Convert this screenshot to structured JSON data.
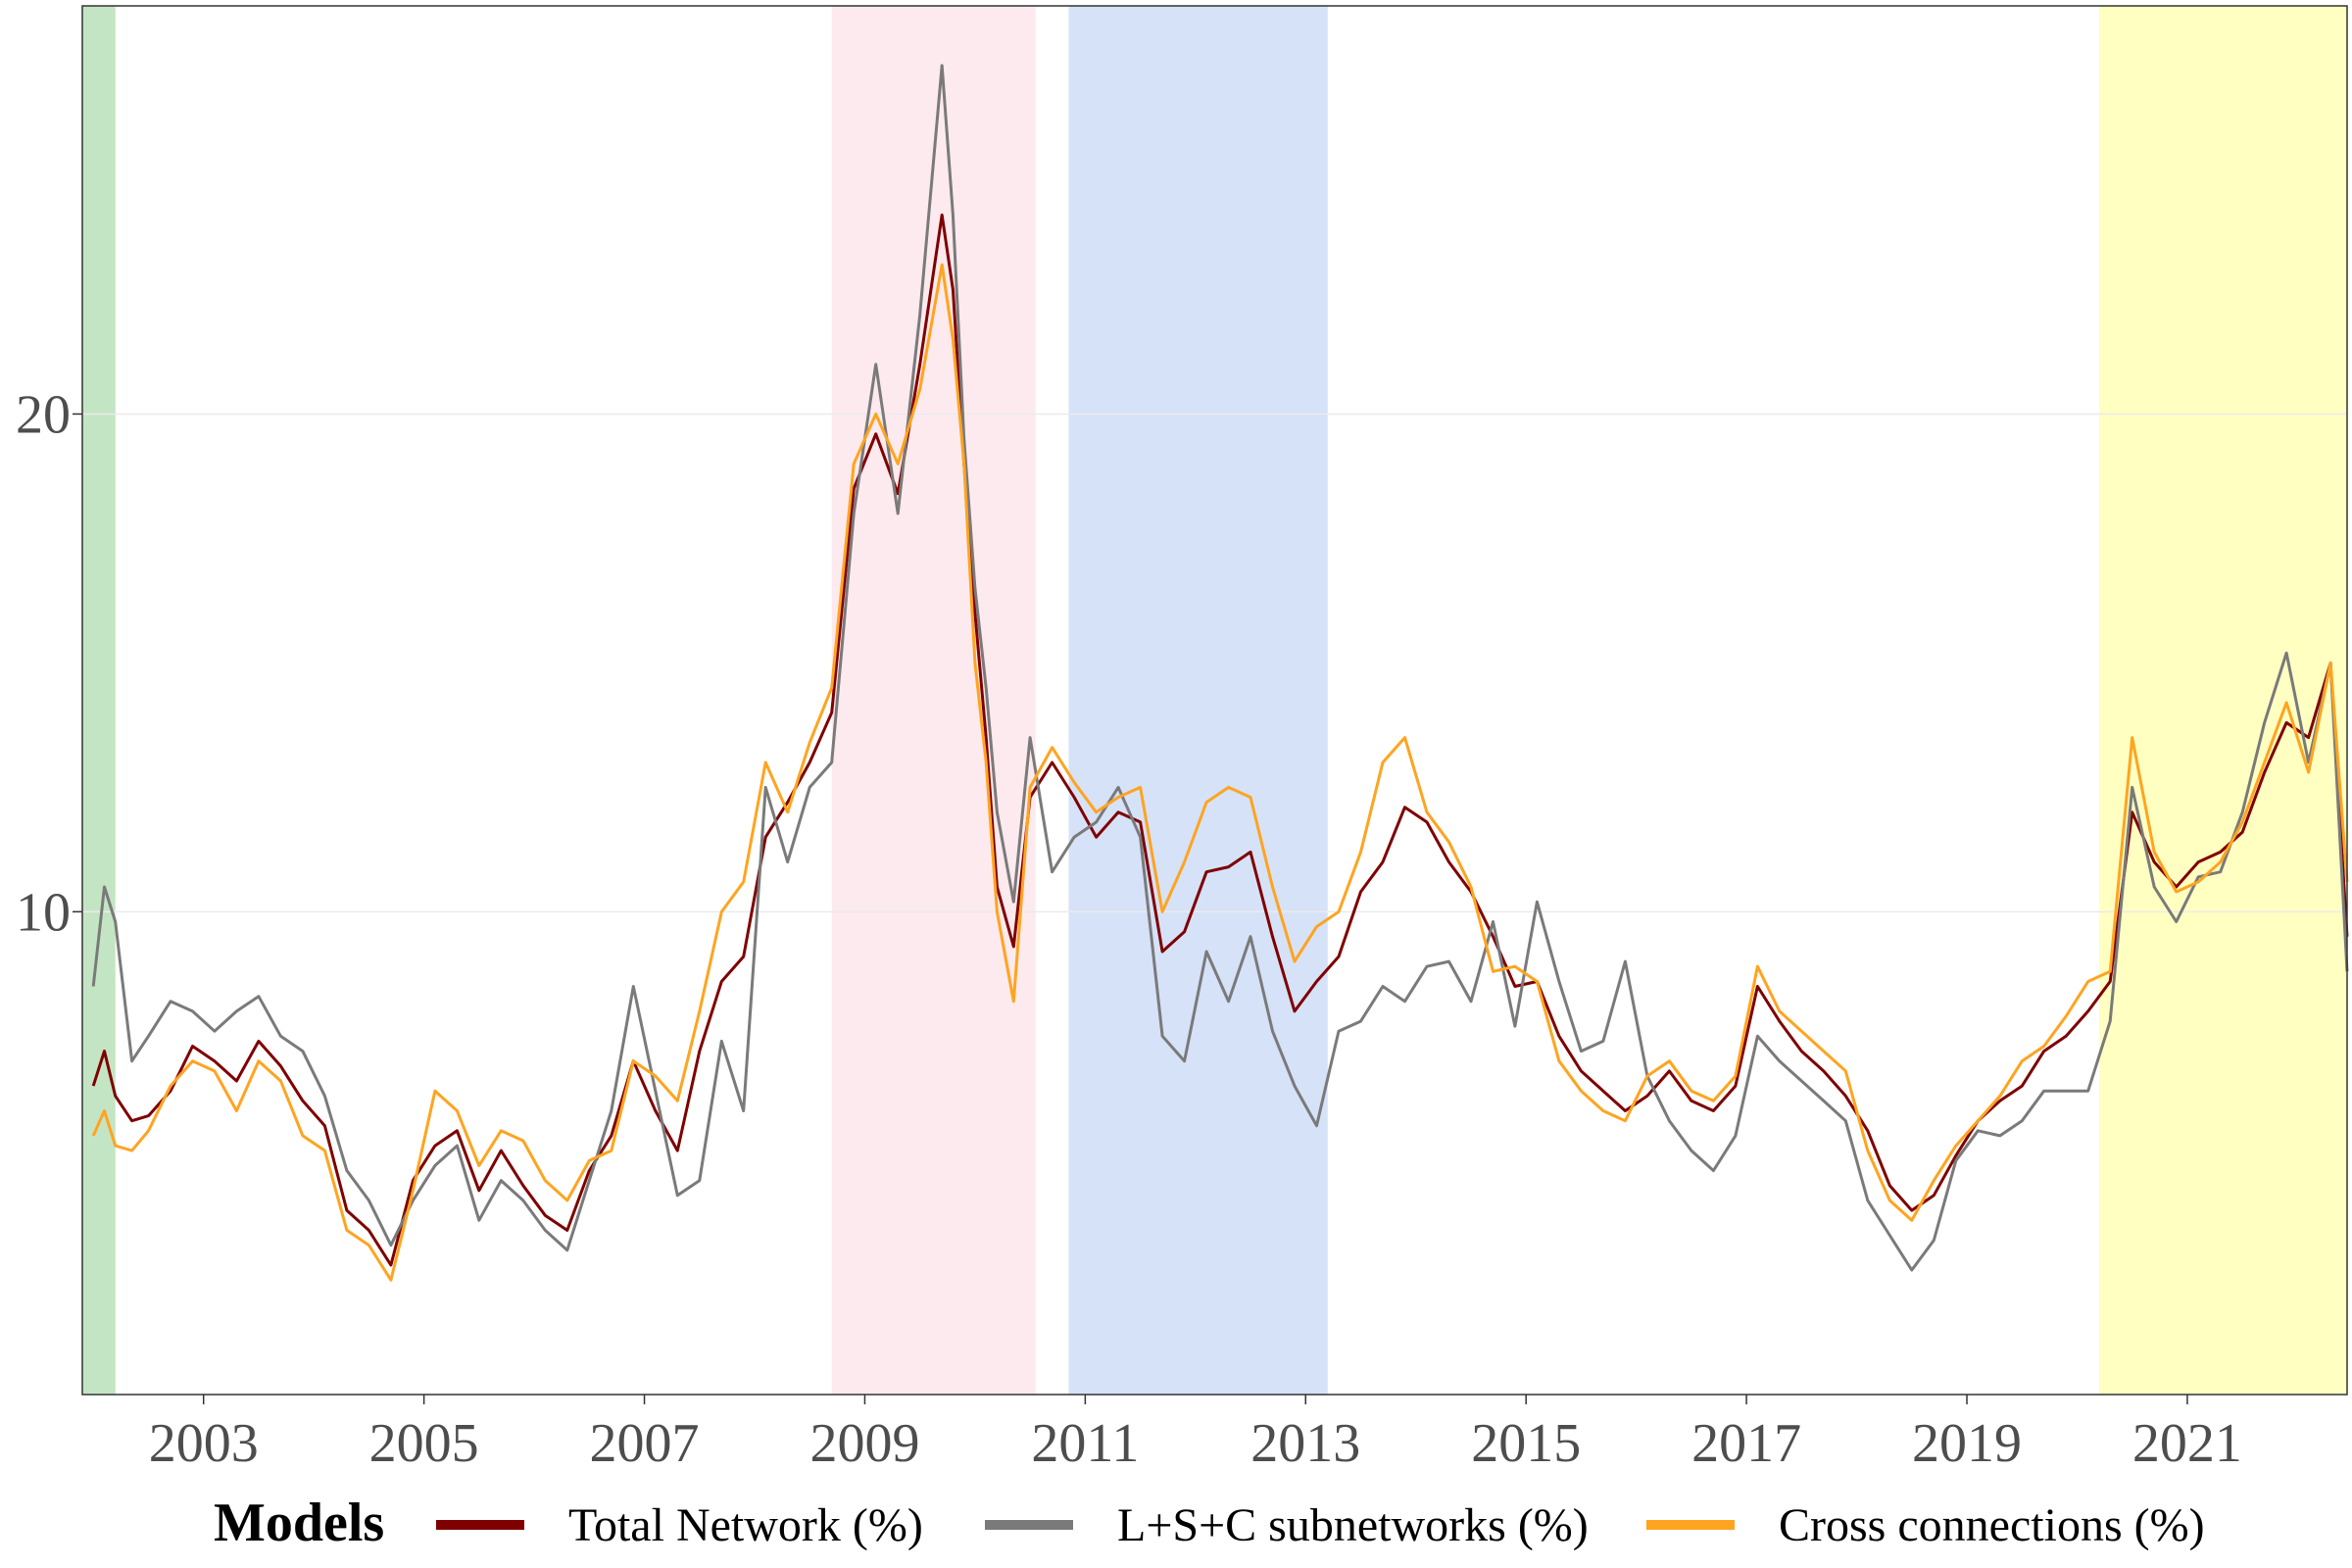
{
  "chart_data": {
    "type": "line",
    "title": "",
    "xlabel": "",
    "ylabel": "",
    "xlim": [
      2001.9,
      2022.45
    ],
    "ylim": [
      0.3,
      28.2
    ],
    "x_ticks": [
      2003,
      2005,
      2007,
      2009,
      2011,
      2013,
      2015,
      2017,
      2019,
      2021
    ],
    "x_tick_labels": [
      "2003",
      "2005",
      "2007",
      "2009",
      "2011",
      "2013",
      "2015",
      "2017",
      "2019",
      "2021"
    ],
    "y_ticks": [
      10,
      20
    ],
    "y_tick_labels": [
      "10",
      "20"
    ],
    "grid": true,
    "legend_position": "bottom",
    "legend_title": "Models",
    "shaded_periods": [
      {
        "start": 2001.9,
        "end": 2002.2,
        "color": "#c4e5c4"
      },
      {
        "start": 2008.7,
        "end": 2010.55,
        "color": "#fdeaee"
      },
      {
        "start": 2010.85,
        "end": 2013.2,
        "color": "#d6e2f8"
      },
      {
        "start": 2020.2,
        "end": 2022.45,
        "color": "#ffffc2"
      }
    ],
    "series": [
      {
        "name": "Total Network (%)",
        "color": "#7f0000",
        "x": [
          2002.0,
          2002.1,
          2002.2,
          2002.35,
          2002.5,
          2002.7,
          2002.9,
          2003.1,
          2003.3,
          2003.5,
          2003.7,
          2003.9,
          2004.1,
          2004.3,
          2004.5,
          2004.7,
          2004.9,
          2005.1,
          2005.3,
          2005.5,
          2005.7,
          2005.9,
          2006.1,
          2006.3,
          2006.5,
          2006.7,
          2006.9,
          2007.1,
          2007.3,
          2007.5,
          2007.7,
          2007.9,
          2008.1,
          2008.3,
          2008.5,
          2008.7,
          2008.9,
          2009.1,
          2009.3,
          2009.5,
          2009.7,
          2009.8,
          2009.9,
          2010.0,
          2010.1,
          2010.2,
          2010.35,
          2010.5,
          2010.7,
          2010.9,
          2011.1,
          2011.3,
          2011.5,
          2011.7,
          2011.9,
          2012.1,
          2012.3,
          2012.5,
          2012.7,
          2012.9,
          2013.1,
          2013.3,
          2013.5,
          2013.7,
          2013.9,
          2014.1,
          2014.3,
          2014.5,
          2014.7,
          2014.9,
          2015.1,
          2015.3,
          2015.5,
          2015.7,
          2015.9,
          2016.1,
          2016.3,
          2016.5,
          2016.7,
          2016.9,
          2017.1,
          2017.3,
          2017.5,
          2017.7,
          2017.9,
          2018.1,
          2018.3,
          2018.5,
          2018.7,
          2018.9,
          2019.1,
          2019.3,
          2019.5,
          2019.7,
          2019.9,
          2020.1,
          2020.3,
          2020.5,
          2020.7,
          2020.9,
          2021.1,
          2021.3,
          2021.5,
          2021.7,
          2021.9,
          2022.1,
          2022.3,
          2022.45
        ],
        "values": [
          6.5,
          7.2,
          6.3,
          5.8,
          5.9,
          6.4,
          7.3,
          7.0,
          6.6,
          7.4,
          6.9,
          6.2,
          5.7,
          4.0,
          3.6,
          2.9,
          4.6,
          5.3,
          5.6,
          4.4,
          5.2,
          4.5,
          3.9,
          3.6,
          4.8,
          5.5,
          7.0,
          6.0,
          5.2,
          7.2,
          8.6,
          9.1,
          11.5,
          12.2,
          13.0,
          14.0,
          18.5,
          19.6,
          18.4,
          21.0,
          24.0,
          22.5,
          19.0,
          16.0,
          13.5,
          10.5,
          9.3,
          12.3,
          13.0,
          12.3,
          11.5,
          12.0,
          11.8,
          9.2,
          9.6,
          10.8,
          10.9,
          11.2,
          9.5,
          8.0,
          8.6,
          9.1,
          10.4,
          11.0,
          12.1,
          11.8,
          11.0,
          10.4,
          9.5,
          8.5,
          8.6,
          7.5,
          6.8,
          6.4,
          6.0,
          6.3,
          6.8,
          6.2,
          6.0,
          6.5,
          8.5,
          7.8,
          7.2,
          6.8,
          6.3,
          5.6,
          4.5,
          4.0,
          4.3,
          5.1,
          5.8,
          6.2,
          6.5,
          7.2,
          7.5,
          8.0,
          8.6,
          12.0,
          11.0,
          10.5,
          11.0,
          11.2,
          11.6,
          12.8,
          13.8,
          13.5,
          15.0,
          9.5
        ]
      },
      {
        "name": "L+S+C subnetworks (%)",
        "color": "#7a7a7a",
        "x": [
          2002.0,
          2002.1,
          2002.2,
          2002.35,
          2002.5,
          2002.7,
          2002.9,
          2003.1,
          2003.3,
          2003.5,
          2003.7,
          2003.9,
          2004.1,
          2004.3,
          2004.5,
          2004.7,
          2004.9,
          2005.1,
          2005.3,
          2005.5,
          2005.7,
          2005.9,
          2006.1,
          2006.3,
          2006.5,
          2006.7,
          2006.9,
          2007.1,
          2007.3,
          2007.5,
          2007.7,
          2007.9,
          2008.1,
          2008.3,
          2008.5,
          2008.7,
          2008.9,
          2009.1,
          2009.3,
          2009.5,
          2009.7,
          2009.8,
          2009.9,
          2010.0,
          2010.1,
          2010.2,
          2010.35,
          2010.5,
          2010.7,
          2010.9,
          2011.1,
          2011.3,
          2011.5,
          2011.7,
          2011.9,
          2012.1,
          2012.3,
          2012.5,
          2012.7,
          2012.9,
          2013.1,
          2013.3,
          2013.5,
          2013.7,
          2013.9,
          2014.1,
          2014.3,
          2014.5,
          2014.7,
          2014.9,
          2015.1,
          2015.3,
          2015.5,
          2015.7,
          2015.9,
          2016.1,
          2016.3,
          2016.5,
          2016.7,
          2016.9,
          2017.1,
          2017.3,
          2017.5,
          2017.7,
          2017.9,
          2018.1,
          2018.3,
          2018.5,
          2018.7,
          2018.9,
          2019.1,
          2019.3,
          2019.5,
          2019.7,
          2019.9,
          2020.1,
          2020.3,
          2020.5,
          2020.7,
          2020.9,
          2021.1,
          2021.3,
          2021.5,
          2021.7,
          2021.9,
          2022.1,
          2022.3,
          2022.45
        ],
        "values": [
          8.5,
          10.5,
          9.8,
          7.0,
          7.5,
          8.2,
          8.0,
          7.6,
          8.0,
          8.3,
          7.5,
          7.2,
          6.3,
          4.8,
          4.2,
          3.3,
          4.2,
          4.9,
          5.3,
          3.8,
          4.6,
          4.2,
          3.6,
          3.2,
          4.6,
          6.0,
          8.5,
          6.4,
          4.3,
          4.6,
          7.4,
          6.0,
          12.5,
          11.0,
          12.5,
          13.0,
          18.0,
          21.0,
          18.0,
          22.0,
          27.0,
          24.0,
          19.5,
          16.5,
          14.5,
          12.0,
          10.2,
          13.5,
          10.8,
          11.5,
          11.8,
          12.5,
          11.5,
          7.5,
          7.0,
          9.2,
          8.2,
          9.5,
          7.6,
          6.5,
          5.7,
          7.6,
          7.8,
          8.5,
          8.2,
          8.9,
          9.0,
          8.2,
          9.8,
          7.7,
          10.2,
          8.6,
          7.2,
          7.4,
          9.0,
          6.7,
          5.8,
          5.2,
          4.8,
          5.5,
          7.5,
          7.0,
          6.6,
          6.2,
          5.8,
          4.2,
          3.5,
          2.8,
          3.4,
          5.0,
          5.6,
          5.5,
          5.8,
          6.4,
          6.4,
          6.4,
          7.8,
          12.5,
          10.5,
          9.8,
          10.7,
          10.8,
          12.0,
          13.8,
          15.2,
          13.0,
          15.0,
          8.8
        ]
      },
      {
        "name": "Cross connections (%)",
        "color": "#ffa420",
        "x": [
          2002.0,
          2002.1,
          2002.2,
          2002.35,
          2002.5,
          2002.7,
          2002.9,
          2003.1,
          2003.3,
          2003.5,
          2003.7,
          2003.9,
          2004.1,
          2004.3,
          2004.5,
          2004.7,
          2004.9,
          2005.1,
          2005.3,
          2005.5,
          2005.7,
          2005.9,
          2006.1,
          2006.3,
          2006.5,
          2006.7,
          2006.9,
          2007.1,
          2007.3,
          2007.5,
          2007.7,
          2007.9,
          2008.1,
          2008.3,
          2008.5,
          2008.7,
          2008.9,
          2009.1,
          2009.3,
          2009.5,
          2009.7,
          2009.8,
          2009.9,
          2010.0,
          2010.1,
          2010.2,
          2010.35,
          2010.5,
          2010.7,
          2010.9,
          2011.1,
          2011.3,
          2011.5,
          2011.7,
          2011.9,
          2012.1,
          2012.3,
          2012.5,
          2012.7,
          2012.9,
          2013.1,
          2013.3,
          2013.5,
          2013.7,
          2013.9,
          2014.1,
          2014.3,
          2014.5,
          2014.7,
          2014.9,
          2015.1,
          2015.3,
          2015.5,
          2015.7,
          2015.9,
          2016.1,
          2016.3,
          2016.5,
          2016.7,
          2016.9,
          2017.1,
          2017.3,
          2017.5,
          2017.7,
          2017.9,
          2018.1,
          2018.3,
          2018.5,
          2018.7,
          2018.9,
          2019.1,
          2019.3,
          2019.5,
          2019.7,
          2019.9,
          2020.1,
          2020.3,
          2020.5,
          2020.7,
          2020.9,
          2021.1,
          2021.3,
          2021.5,
          2021.7,
          2021.9,
          2022.1,
          2022.3,
          2022.45
        ],
        "values": [
          5.5,
          6.0,
          5.3,
          5.2,
          5.6,
          6.5,
          7.0,
          6.8,
          6.0,
          7.0,
          6.6,
          5.5,
          5.2,
          3.6,
          3.3,
          2.6,
          4.4,
          6.4,
          6.0,
          4.9,
          5.6,
          5.4,
          4.6,
          4.2,
          5.0,
          5.2,
          7.0,
          6.7,
          6.2,
          8.0,
          10.0,
          10.6,
          13.0,
          12.0,
          13.4,
          14.5,
          19.0,
          20.0,
          19.0,
          20.5,
          23.0,
          21.5,
          19.0,
          15.0,
          13.0,
          10.0,
          8.2,
          12.5,
          13.3,
          12.6,
          12.0,
          12.3,
          12.5,
          10.0,
          11.0,
          12.2,
          12.5,
          12.3,
          10.5,
          9.0,
          9.7,
          10.0,
          11.2,
          13.0,
          13.5,
          12.0,
          11.4,
          10.5,
          8.8,
          8.9,
          8.6,
          7.0,
          6.4,
          6.0,
          5.8,
          6.7,
          7.0,
          6.4,
          6.2,
          6.7,
          8.9,
          8.0,
          7.6,
          7.2,
          6.8,
          5.2,
          4.2,
          3.8,
          4.6,
          5.3,
          5.8,
          6.3,
          7.0,
          7.3,
          7.9,
          8.6,
          8.8,
          13.5,
          11.2,
          10.4,
          10.6,
          11.0,
          11.8,
          13.0,
          14.2,
          12.8,
          15.0,
          10.6
        ]
      }
    ]
  }
}
